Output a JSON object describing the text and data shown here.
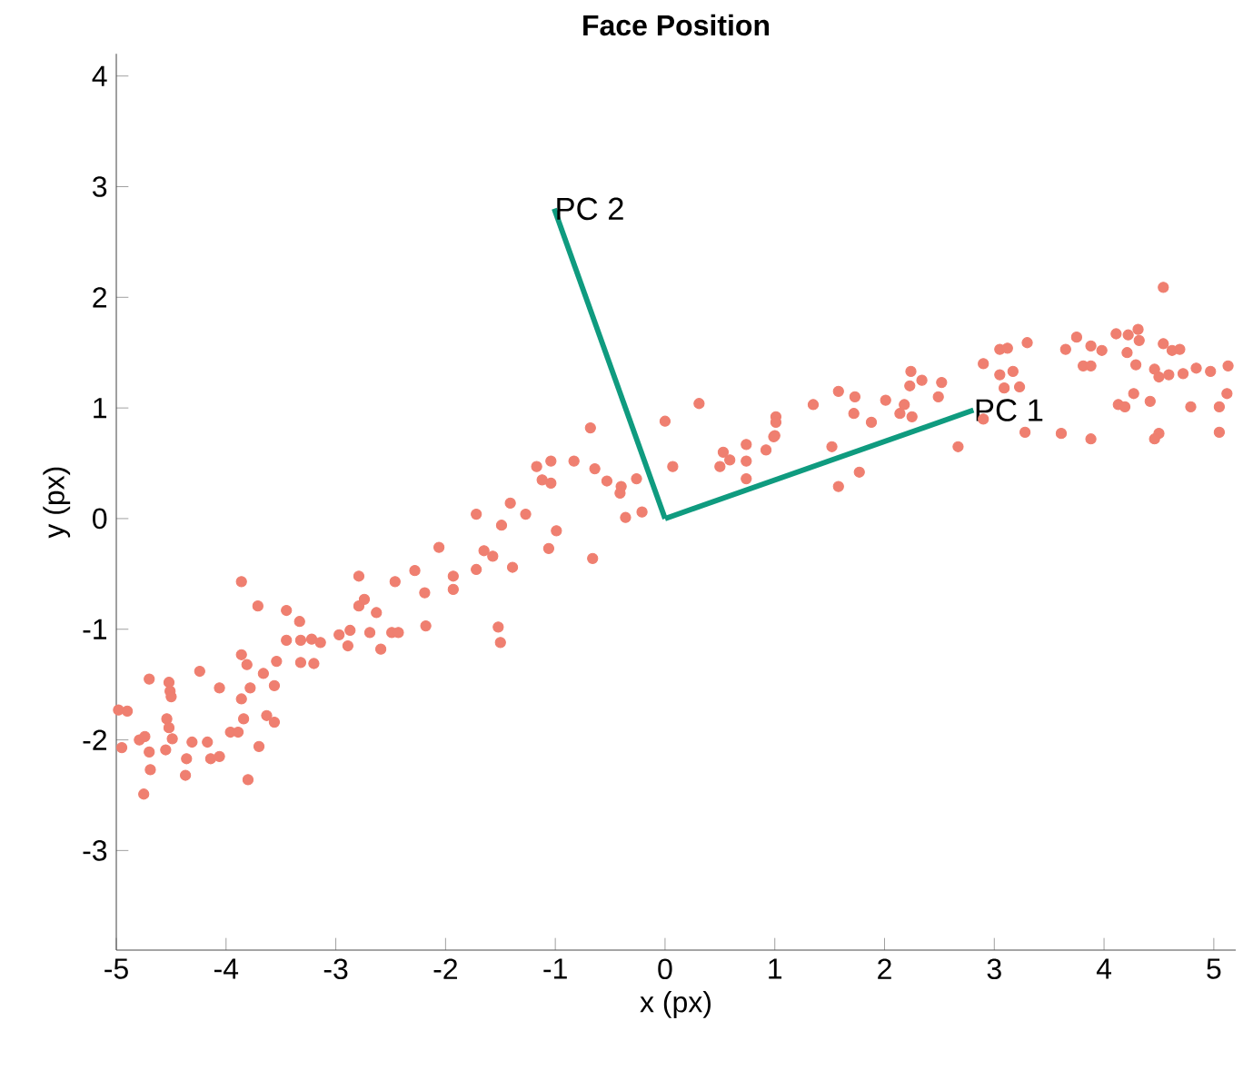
{
  "chart_data": {
    "type": "scatter",
    "title": "Face Position",
    "xlabel": "x (px)",
    "ylabel": "y (px)",
    "xlim": [
      -5,
      5.2
    ],
    "ylim": [
      -3.9,
      4.2
    ],
    "xticks": [
      -5,
      -4,
      -3,
      -2,
      -1,
      0,
      1,
      2,
      3,
      4,
      5
    ],
    "yticks": [
      -3,
      -2,
      -1,
      0,
      1,
      2,
      3,
      4
    ],
    "grid": false,
    "series": [
      {
        "marker": "circle",
        "color": "#ef7f70",
        "x": [
          -4.98,
          -4.9,
          -4.95,
          -4.79,
          -4.74,
          -4.7,
          -4.69,
          -4.75,
          -4.7,
          -4.52,
          -4.51,
          -4.5,
          -4.54,
          -4.52,
          -4.49,
          -4.55,
          -4.37,
          -4.36,
          -4.31,
          -4.24,
          -4.17,
          -4.14,
          -4.06,
          -4.06,
          -3.96,
          -3.89,
          -3.86,
          -3.86,
          -3.81,
          -3.84,
          -3.86,
          -3.78,
          -3.8,
          -3.7,
          -3.71,
          -3.66,
          -3.63,
          -3.56,
          -3.56,
          -3.54,
          -3.45,
          -3.33,
          -3.45,
          -3.32,
          -3.32,
          -3.22,
          -3.2,
          -3.14,
          -2.97,
          -2.89,
          -2.87,
          -2.79,
          -2.79,
          -2.74,
          -2.69,
          -2.63,
          -2.59,
          -2.49,
          -2.46,
          -2.43,
          -2.28,
          -2.19,
          -2.18,
          -2.06,
          -1.93,
          -1.93,
          -0.68,
          -1.17,
          -1.04,
          -1.12,
          -1.04,
          -0.83,
          -0.64,
          -0.53,
          -0.4,
          -0.41,
          -0.26,
          -0.36,
          -0.21,
          -0.66,
          -0.99,
          -1.06,
          -1.41,
          -1.49,
          -1.27,
          -1.72,
          -1.65,
          -1.57,
          -1.72,
          -1.39,
          -1.52,
          -1.5,
          0.0,
          0.31,
          0.07,
          0.5,
          0.53,
          0.59,
          0.74,
          0.74,
          0.74,
          0.92,
          0.99,
          1.01,
          1.01,
          1.0,
          1.35,
          1.52,
          1.58,
          1.73,
          1.72,
          1.58,
          1.77,
          1.88,
          2.01,
          2.14,
          2.18,
          2.24,
          2.23,
          2.34,
          2.25,
          2.49,
          2.52,
          2.67,
          2.9,
          3.05,
          3.12,
          3.3,
          3.05,
          3.17,
          3.09,
          3.23,
          3.28,
          3.61,
          3.88,
          3.65,
          3.75,
          3.88,
          3.98,
          3.81,
          3.88,
          4.11,
          4.22,
          4.31,
          4.32,
          4.21,
          4.29,
          4.54,
          4.54,
          4.62,
          4.69,
          4.46,
          4.5,
          4.59,
          4.72,
          4.84,
          4.97,
          5.13,
          5.12,
          4.27,
          4.13,
          4.19,
          4.42,
          4.79,
          5.05,
          4.5,
          4.46,
          5.05,
          2.9
        ],
        "values": [
          -1.73,
          -1.74,
          -2.07,
          -2.0,
          -1.97,
          -2.11,
          -2.27,
          -2.49,
          -1.45,
          -1.48,
          -1.56,
          -1.61,
          -1.81,
          -1.89,
          -1.99,
          -2.09,
          -2.32,
          -2.17,
          -2.02,
          -1.38,
          -2.02,
          -2.17,
          -2.15,
          -1.53,
          -1.93,
          -1.93,
          -0.57,
          -1.23,
          -1.32,
          -1.81,
          -1.63,
          -1.53,
          -2.36,
          -2.06,
          -0.79,
          -1.4,
          -1.78,
          -1.84,
          -1.51,
          -1.29,
          -0.83,
          -0.93,
          -1.1,
          -1.1,
          -1.3,
          -1.09,
          -1.31,
          -1.12,
          -1.05,
          -1.15,
          -1.01,
          -0.52,
          -0.79,
          -0.73,
          -1.03,
          -0.85,
          -1.18,
          -1.03,
          -0.57,
          -1.03,
          -0.47,
          -0.67,
          -0.97,
          -0.26,
          -0.52,
          -0.64,
          0.82,
          0.47,
          0.52,
          0.35,
          0.32,
          0.52,
          0.45,
          0.34,
          0.29,
          0.23,
          0.36,
          0.01,
          0.06,
          -0.36,
          -0.11,
          -0.27,
          0.14,
          -0.06,
          0.04,
          0.04,
          -0.29,
          -0.34,
          -0.46,
          -0.44,
          -0.98,
          -1.12,
          0.88,
          1.04,
          0.47,
          0.47,
          0.6,
          0.53,
          0.67,
          0.52,
          0.36,
          0.62,
          0.74,
          0.92,
          0.87,
          0.75,
          1.03,
          0.65,
          1.15,
          1.1,
          0.95,
          0.29,
          0.42,
          0.87,
          1.07,
          0.95,
          1.03,
          1.33,
          1.2,
          1.25,
          0.92,
          1.1,
          1.23,
          0.65,
          1.4,
          1.53,
          1.54,
          1.59,
          1.3,
          1.33,
          1.18,
          1.19,
          0.78,
          0.77,
          0.72,
          1.53,
          1.64,
          1.56,
          1.52,
          1.38,
          1.38,
          1.67,
          1.66,
          1.71,
          1.61,
          1.5,
          1.39,
          2.09,
          1.58,
          1.52,
          1.53,
          1.35,
          1.28,
          1.3,
          1.31,
          1.36,
          1.33,
          1.38,
          1.13,
          1.13,
          1.03,
          1.01,
          1.06,
          1.01,
          1.01,
          0.77,
          0.72,
          0.78,
          0.9
        ]
      },
      {
        "type": "line",
        "marker": "none",
        "color": "#0f9b7f",
        "x": [
          0,
          2.81
        ],
        "values": [
          0,
          0.98
        ]
      },
      {
        "type": "line",
        "marker": "none",
        "color": "#0f9b7f",
        "x": [
          0,
          -1.01
        ],
        "values": [
          0,
          2.8
        ]
      }
    ],
    "annotations": [
      {
        "text": "PC 1",
        "x": 2.81,
        "y": 0.98
      },
      {
        "text": "PC 2",
        "x": -1.01,
        "y": 2.8
      }
    ]
  }
}
